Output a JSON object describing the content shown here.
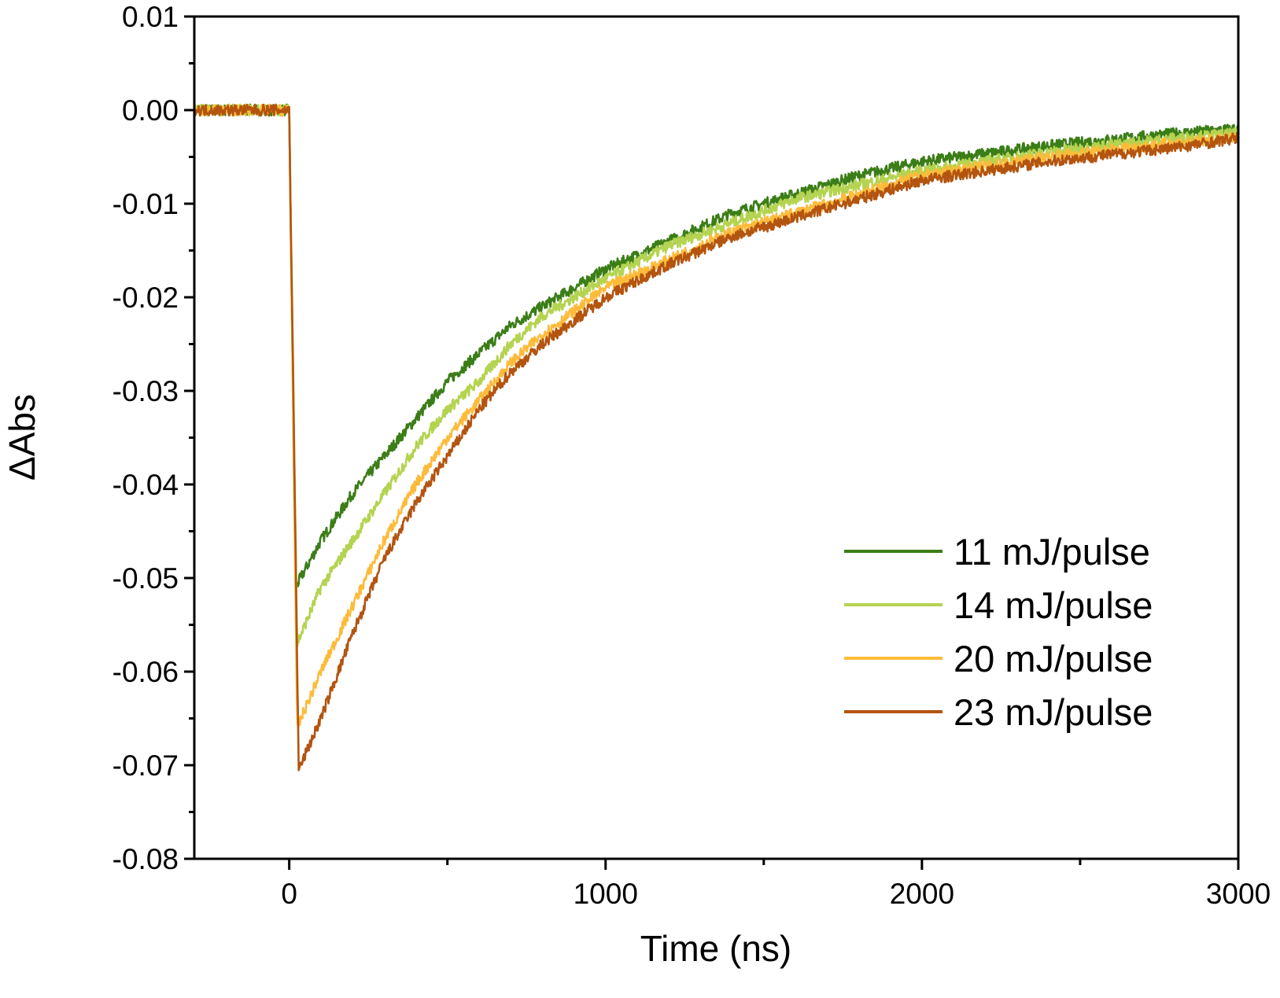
{
  "chart_data": {
    "type": "line",
    "title": "",
    "xlabel": "Time (ns)",
    "ylabel": "ΔAbs",
    "xlim": [
      -300,
      3000
    ],
    "ylim": [
      -0.08,
      0.01
    ],
    "xticks": [
      "0",
      "1000",
      "2000",
      "3000"
    ],
    "yticks": [
      "0.01",
      "0.00",
      "-0.01",
      "-0.02",
      "-0.03",
      "-0.04",
      "-0.05",
      "-0.06",
      "-0.07",
      "-0.08"
    ],
    "grid": false,
    "legend_position": "lower-right",
    "series": [
      {
        "name": "11 mJ/pulse",
        "color": "#3b7d17",
        "x": [
          -300,
          0,
          20,
          100,
          200,
          300,
          400,
          500,
          600,
          700,
          800,
          1000,
          1200,
          1400,
          1600,
          1800,
          2000,
          2400,
          2800,
          3000
        ],
        "y": [
          0,
          0,
          -0.051,
          -0.046,
          -0.041,
          -0.037,
          -0.033,
          -0.029,
          -0.026,
          -0.023,
          -0.021,
          -0.017,
          -0.014,
          -0.011,
          -0.009,
          -0.007,
          -0.0055,
          -0.0038,
          -0.0025,
          -0.002
        ]
      },
      {
        "name": "14 mJ/pulse",
        "color": "#b4d350",
        "x": [
          -300,
          0,
          25,
          100,
          200,
          300,
          400,
          500,
          600,
          700,
          800,
          1000,
          1200,
          1400,
          1600,
          1800,
          2000,
          2400,
          2800,
          3000
        ],
        "y": [
          0,
          0,
          -0.057,
          -0.051,
          -0.046,
          -0.041,
          -0.036,
          -0.032,
          -0.029,
          -0.025,
          -0.022,
          -0.018,
          -0.0145,
          -0.012,
          -0.0095,
          -0.008,
          -0.0065,
          -0.0045,
          -0.003,
          -0.0025
        ]
      },
      {
        "name": "20 mJ/pulse",
        "color": "#fdbb3a",
        "x": [
          -300,
          0,
          25,
          100,
          200,
          300,
          400,
          500,
          600,
          700,
          800,
          1000,
          1200,
          1400,
          1600,
          1800,
          2000,
          2400,
          2800,
          3000
        ],
        "y": [
          0,
          0,
          -0.066,
          -0.06,
          -0.053,
          -0.046,
          -0.04,
          -0.035,
          -0.031,
          -0.027,
          -0.024,
          -0.019,
          -0.016,
          -0.013,
          -0.011,
          -0.009,
          -0.007,
          -0.005,
          -0.0035,
          -0.003
        ]
      },
      {
        "name": "23 mJ/pulse",
        "color": "#b3540f",
        "x": [
          -300,
          0,
          30,
          100,
          200,
          300,
          400,
          500,
          600,
          700,
          800,
          1000,
          1200,
          1400,
          1600,
          1800,
          2000,
          2400,
          2800,
          3000
        ],
        "y": [
          0,
          0,
          -0.0705,
          -0.065,
          -0.056,
          -0.048,
          -0.042,
          -0.037,
          -0.032,
          -0.028,
          -0.025,
          -0.02,
          -0.0165,
          -0.0135,
          -0.0115,
          -0.0095,
          -0.0075,
          -0.0055,
          -0.004,
          -0.003
        ]
      }
    ]
  }
}
